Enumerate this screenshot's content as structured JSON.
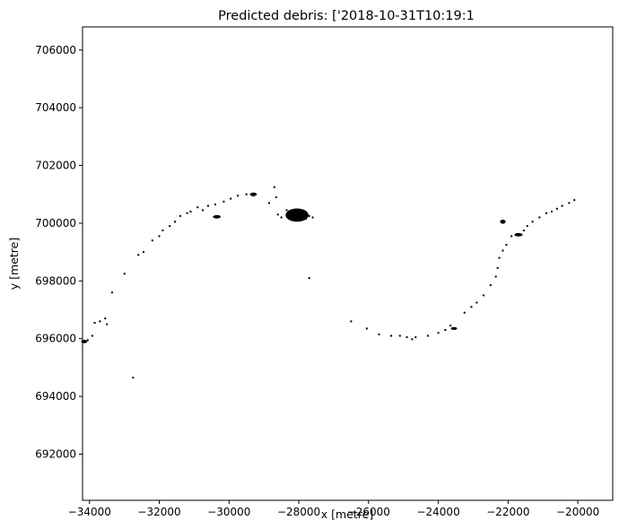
{
  "chart_data": {
    "type": "scatter",
    "title": "Predicted debris: ['2018-10-31T10:19:1",
    "xlabel": "x [metre]",
    "ylabel": "y [metre]",
    "xlim": [
      -34200,
      -19000
    ],
    "ylim": [
      690400,
      706800
    ],
    "xticks": [
      -34000,
      -32000,
      -30000,
      -28000,
      -26000,
      -24000,
      -22000,
      -20000
    ],
    "xtick_labels": [
      "−34000",
      "−32000",
      "−30000",
      "−28000",
      "−26000",
      "−24000",
      "−22000",
      "−20000"
    ],
    "yticks": [
      692000,
      694000,
      696000,
      698000,
      700000,
      702000,
      704000,
      706000
    ],
    "ytick_labels": [
      "692000",
      "694000",
      "696000",
      "698000",
      "700000",
      "702000",
      "704000",
      "706000"
    ],
    "grid": false,
    "colors": {
      "debris": "#000000",
      "background": "#ffffff",
      "axes": "#000000"
    },
    "series": [
      {
        "points": [
          [
            -34180,
            695900
          ],
          [
            -34050,
            695950
          ],
          [
            -33920,
            696100
          ],
          [
            -33850,
            696550
          ],
          [
            -33700,
            696600
          ],
          [
            -33550,
            696700
          ],
          [
            -33500,
            696500
          ],
          [
            -33350,
            697600
          ],
          [
            -33000,
            698250
          ],
          [
            -32750,
            694650
          ],
          [
            -32600,
            698900
          ],
          [
            -32450,
            699000
          ],
          [
            -32200,
            699400
          ],
          [
            -32000,
            699550
          ],
          [
            -31900,
            699750
          ],
          [
            -31700,
            699900
          ],
          [
            -31550,
            700050
          ],
          [
            -31400,
            700250
          ],
          [
            -31200,
            700350
          ],
          [
            -31100,
            700400
          ],
          [
            -30900,
            700550
          ],
          [
            -30750,
            700450
          ],
          [
            -30600,
            700600
          ],
          [
            -30400,
            700650
          ],
          [
            -30300,
            700250
          ],
          [
            -30150,
            700750
          ],
          [
            -29950,
            700850
          ],
          [
            -29750,
            700950
          ],
          [
            -29500,
            701000
          ],
          [
            -29350,
            700980
          ],
          [
            -29300,
            700950
          ],
          [
            -28850,
            700700
          ],
          [
            -28700,
            701250
          ],
          [
            -28650,
            700900
          ],
          [
            -28600,
            700300
          ],
          [
            -28500,
            700200
          ],
          [
            -28350,
            700450
          ],
          [
            -28250,
            700200
          ],
          [
            -28150,
            700300
          ],
          [
            -28050,
            700350
          ],
          [
            -27950,
            700250
          ],
          [
            -27900,
            700400
          ],
          [
            -27800,
            700150
          ],
          [
            -27700,
            700250
          ],
          [
            -27600,
            700200
          ],
          [
            -27700,
            698100
          ],
          [
            -26500,
            696600
          ],
          [
            -26050,
            696350
          ],
          [
            -25700,
            696150
          ],
          [
            -25350,
            696100
          ],
          [
            -25100,
            696100
          ],
          [
            -24900,
            696050
          ],
          [
            -24750,
            695980
          ],
          [
            -24650,
            696050
          ],
          [
            -24300,
            696100
          ],
          [
            -24000,
            696200
          ],
          [
            -23800,
            696300
          ],
          [
            -23650,
            696450
          ],
          [
            -23250,
            696900
          ],
          [
            -23050,
            697100
          ],
          [
            -22900,
            697250
          ],
          [
            -22700,
            697500
          ],
          [
            -22500,
            697850
          ],
          [
            -22350,
            698150
          ],
          [
            -22300,
            698450
          ],
          [
            -22250,
            698800
          ],
          [
            -22150,
            699050
          ],
          [
            -22050,
            699250
          ],
          [
            -21900,
            699550
          ],
          [
            -21750,
            699600
          ],
          [
            -21550,
            699750
          ],
          [
            -21450,
            699900
          ],
          [
            -21300,
            700050
          ],
          [
            -21100,
            700200
          ],
          [
            -20900,
            700350
          ],
          [
            -20750,
            700400
          ],
          [
            -20600,
            700500
          ],
          [
            -20450,
            700600
          ],
          [
            -20250,
            700700
          ],
          [
            -20100,
            700800
          ]
        ]
      }
    ],
    "blobs": [
      {
        "x": -28050,
        "y": 700280,
        "rx": 330,
        "ry": 230
      },
      {
        "x": -30350,
        "y": 700220,
        "rx": 110,
        "ry": 60
      },
      {
        "x": -29300,
        "y": 701000,
        "rx": 100,
        "ry": 60
      },
      {
        "x": -21700,
        "y": 699600,
        "rx": 120,
        "ry": 60
      },
      {
        "x": -22150,
        "y": 700050,
        "rx": 80,
        "ry": 70
      },
      {
        "x": -34150,
        "y": 695900,
        "rx": 90,
        "ry": 60
      },
      {
        "x": -23550,
        "y": 696350,
        "rx": 90,
        "ry": 50
      }
    ]
  }
}
